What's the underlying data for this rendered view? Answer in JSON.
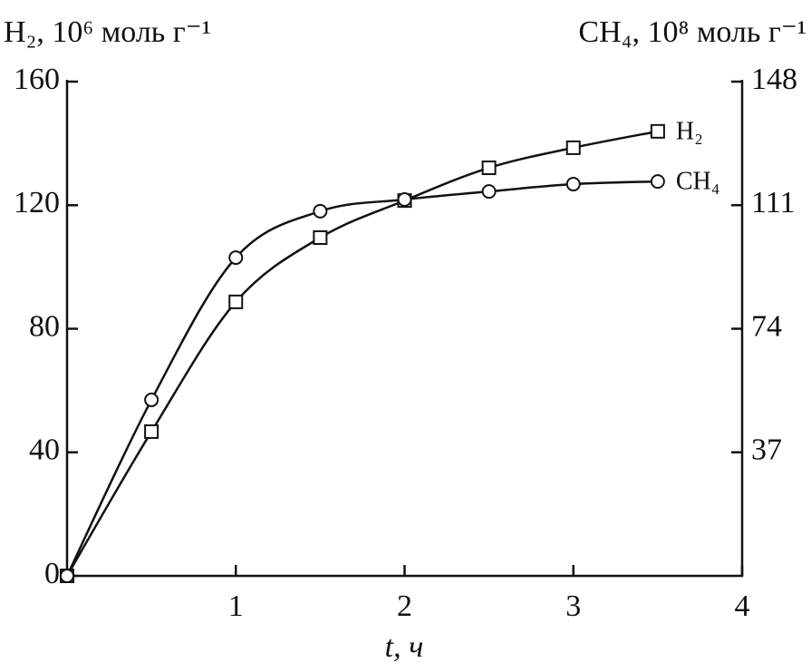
{
  "chart_data": {
    "type": "line",
    "y_label": "H₂, 10⁶ моль г⁻¹",
    "y2_label": "CH₄, 10⁸ моль г⁻¹",
    "x_label": "t, ч",
    "x": [
      0,
      0.5,
      1,
      1.5,
      2,
      2.5,
      3,
      3.5
    ],
    "series": [
      {
        "name": "H₂",
        "color": "#111111",
        "marker": "square",
        "values": [
          0,
          46.7,
          88.7,
          109.5,
          121.5,
          132.1,
          138.6,
          143.9
        ]
      },
      {
        "name": "CH₄",
        "color": "#111111",
        "marker": "circle",
        "axis": "y2",
        "values": [
          0,
          52.7,
          95.3,
          109.2,
          112.7,
          115.1,
          117.3,
          118.1
        ]
      }
    ],
    "xlim": [
      0,
      4
    ],
    "xticks": [
      1,
      2,
      3,
      4
    ],
    "ylim": [
      0,
      160
    ],
    "yticks": [
      0,
      40,
      80,
      120,
      160
    ],
    "y2lim": [
      0,
      148
    ],
    "y2ticks": [
      37,
      74,
      111,
      148
    ]
  }
}
